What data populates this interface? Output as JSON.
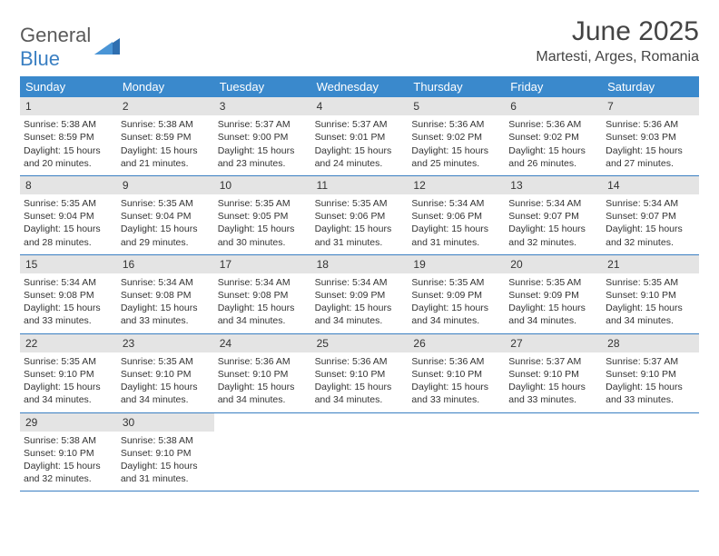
{
  "logo": {
    "general": "General",
    "blue": "Blue"
  },
  "colors": {
    "header_bg": "#3a89cc",
    "header_text": "#ffffff",
    "accent_line": "#3a7fc2",
    "daynum_bg": "#e4e4e4",
    "text": "#333333",
    "title": "#444444"
  },
  "title": "June 2025",
  "location": "Martesti, Arges, Romania",
  "weekdays": [
    "Sunday",
    "Monday",
    "Tuesday",
    "Wednesday",
    "Thursday",
    "Friday",
    "Saturday"
  ],
  "weeks": [
    [
      {
        "n": "1",
        "sr": "Sunrise: 5:38 AM",
        "ss": "Sunset: 8:59 PM",
        "dl1": "Daylight: 15 hours",
        "dl2": "and 20 minutes."
      },
      {
        "n": "2",
        "sr": "Sunrise: 5:38 AM",
        "ss": "Sunset: 8:59 PM",
        "dl1": "Daylight: 15 hours",
        "dl2": "and 21 minutes."
      },
      {
        "n": "3",
        "sr": "Sunrise: 5:37 AM",
        "ss": "Sunset: 9:00 PM",
        "dl1": "Daylight: 15 hours",
        "dl2": "and 23 minutes."
      },
      {
        "n": "4",
        "sr": "Sunrise: 5:37 AM",
        "ss": "Sunset: 9:01 PM",
        "dl1": "Daylight: 15 hours",
        "dl2": "and 24 minutes."
      },
      {
        "n": "5",
        "sr": "Sunrise: 5:36 AM",
        "ss": "Sunset: 9:02 PM",
        "dl1": "Daylight: 15 hours",
        "dl2": "and 25 minutes."
      },
      {
        "n": "6",
        "sr": "Sunrise: 5:36 AM",
        "ss": "Sunset: 9:02 PM",
        "dl1": "Daylight: 15 hours",
        "dl2": "and 26 minutes."
      },
      {
        "n": "7",
        "sr": "Sunrise: 5:36 AM",
        "ss": "Sunset: 9:03 PM",
        "dl1": "Daylight: 15 hours",
        "dl2": "and 27 minutes."
      }
    ],
    [
      {
        "n": "8",
        "sr": "Sunrise: 5:35 AM",
        "ss": "Sunset: 9:04 PM",
        "dl1": "Daylight: 15 hours",
        "dl2": "and 28 minutes."
      },
      {
        "n": "9",
        "sr": "Sunrise: 5:35 AM",
        "ss": "Sunset: 9:04 PM",
        "dl1": "Daylight: 15 hours",
        "dl2": "and 29 minutes."
      },
      {
        "n": "10",
        "sr": "Sunrise: 5:35 AM",
        "ss": "Sunset: 9:05 PM",
        "dl1": "Daylight: 15 hours",
        "dl2": "and 30 minutes."
      },
      {
        "n": "11",
        "sr": "Sunrise: 5:35 AM",
        "ss": "Sunset: 9:06 PM",
        "dl1": "Daylight: 15 hours",
        "dl2": "and 31 minutes."
      },
      {
        "n": "12",
        "sr": "Sunrise: 5:34 AM",
        "ss": "Sunset: 9:06 PM",
        "dl1": "Daylight: 15 hours",
        "dl2": "and 31 minutes."
      },
      {
        "n": "13",
        "sr": "Sunrise: 5:34 AM",
        "ss": "Sunset: 9:07 PM",
        "dl1": "Daylight: 15 hours",
        "dl2": "and 32 minutes."
      },
      {
        "n": "14",
        "sr": "Sunrise: 5:34 AM",
        "ss": "Sunset: 9:07 PM",
        "dl1": "Daylight: 15 hours",
        "dl2": "and 32 minutes."
      }
    ],
    [
      {
        "n": "15",
        "sr": "Sunrise: 5:34 AM",
        "ss": "Sunset: 9:08 PM",
        "dl1": "Daylight: 15 hours",
        "dl2": "and 33 minutes."
      },
      {
        "n": "16",
        "sr": "Sunrise: 5:34 AM",
        "ss": "Sunset: 9:08 PM",
        "dl1": "Daylight: 15 hours",
        "dl2": "and 33 minutes."
      },
      {
        "n": "17",
        "sr": "Sunrise: 5:34 AM",
        "ss": "Sunset: 9:08 PM",
        "dl1": "Daylight: 15 hours",
        "dl2": "and 34 minutes."
      },
      {
        "n": "18",
        "sr": "Sunrise: 5:34 AM",
        "ss": "Sunset: 9:09 PM",
        "dl1": "Daylight: 15 hours",
        "dl2": "and 34 minutes."
      },
      {
        "n": "19",
        "sr": "Sunrise: 5:35 AM",
        "ss": "Sunset: 9:09 PM",
        "dl1": "Daylight: 15 hours",
        "dl2": "and 34 minutes."
      },
      {
        "n": "20",
        "sr": "Sunrise: 5:35 AM",
        "ss": "Sunset: 9:09 PM",
        "dl1": "Daylight: 15 hours",
        "dl2": "and 34 minutes."
      },
      {
        "n": "21",
        "sr": "Sunrise: 5:35 AM",
        "ss": "Sunset: 9:10 PM",
        "dl1": "Daylight: 15 hours",
        "dl2": "and 34 minutes."
      }
    ],
    [
      {
        "n": "22",
        "sr": "Sunrise: 5:35 AM",
        "ss": "Sunset: 9:10 PM",
        "dl1": "Daylight: 15 hours",
        "dl2": "and 34 minutes."
      },
      {
        "n": "23",
        "sr": "Sunrise: 5:35 AM",
        "ss": "Sunset: 9:10 PM",
        "dl1": "Daylight: 15 hours",
        "dl2": "and 34 minutes."
      },
      {
        "n": "24",
        "sr": "Sunrise: 5:36 AM",
        "ss": "Sunset: 9:10 PM",
        "dl1": "Daylight: 15 hours",
        "dl2": "and 34 minutes."
      },
      {
        "n": "25",
        "sr": "Sunrise: 5:36 AM",
        "ss": "Sunset: 9:10 PM",
        "dl1": "Daylight: 15 hours",
        "dl2": "and 34 minutes."
      },
      {
        "n": "26",
        "sr": "Sunrise: 5:36 AM",
        "ss": "Sunset: 9:10 PM",
        "dl1": "Daylight: 15 hours",
        "dl2": "and 33 minutes."
      },
      {
        "n": "27",
        "sr": "Sunrise: 5:37 AM",
        "ss": "Sunset: 9:10 PM",
        "dl1": "Daylight: 15 hours",
        "dl2": "and 33 minutes."
      },
      {
        "n": "28",
        "sr": "Sunrise: 5:37 AM",
        "ss": "Sunset: 9:10 PM",
        "dl1": "Daylight: 15 hours",
        "dl2": "and 33 minutes."
      }
    ],
    [
      {
        "n": "29",
        "sr": "Sunrise: 5:38 AM",
        "ss": "Sunset: 9:10 PM",
        "dl1": "Daylight: 15 hours",
        "dl2": "and 32 minutes."
      },
      {
        "n": "30",
        "sr": "Sunrise: 5:38 AM",
        "ss": "Sunset: 9:10 PM",
        "dl1": "Daylight: 15 hours",
        "dl2": "and 31 minutes."
      },
      {
        "empty": true
      },
      {
        "empty": true
      },
      {
        "empty": true
      },
      {
        "empty": true
      },
      {
        "empty": true
      }
    ]
  ]
}
